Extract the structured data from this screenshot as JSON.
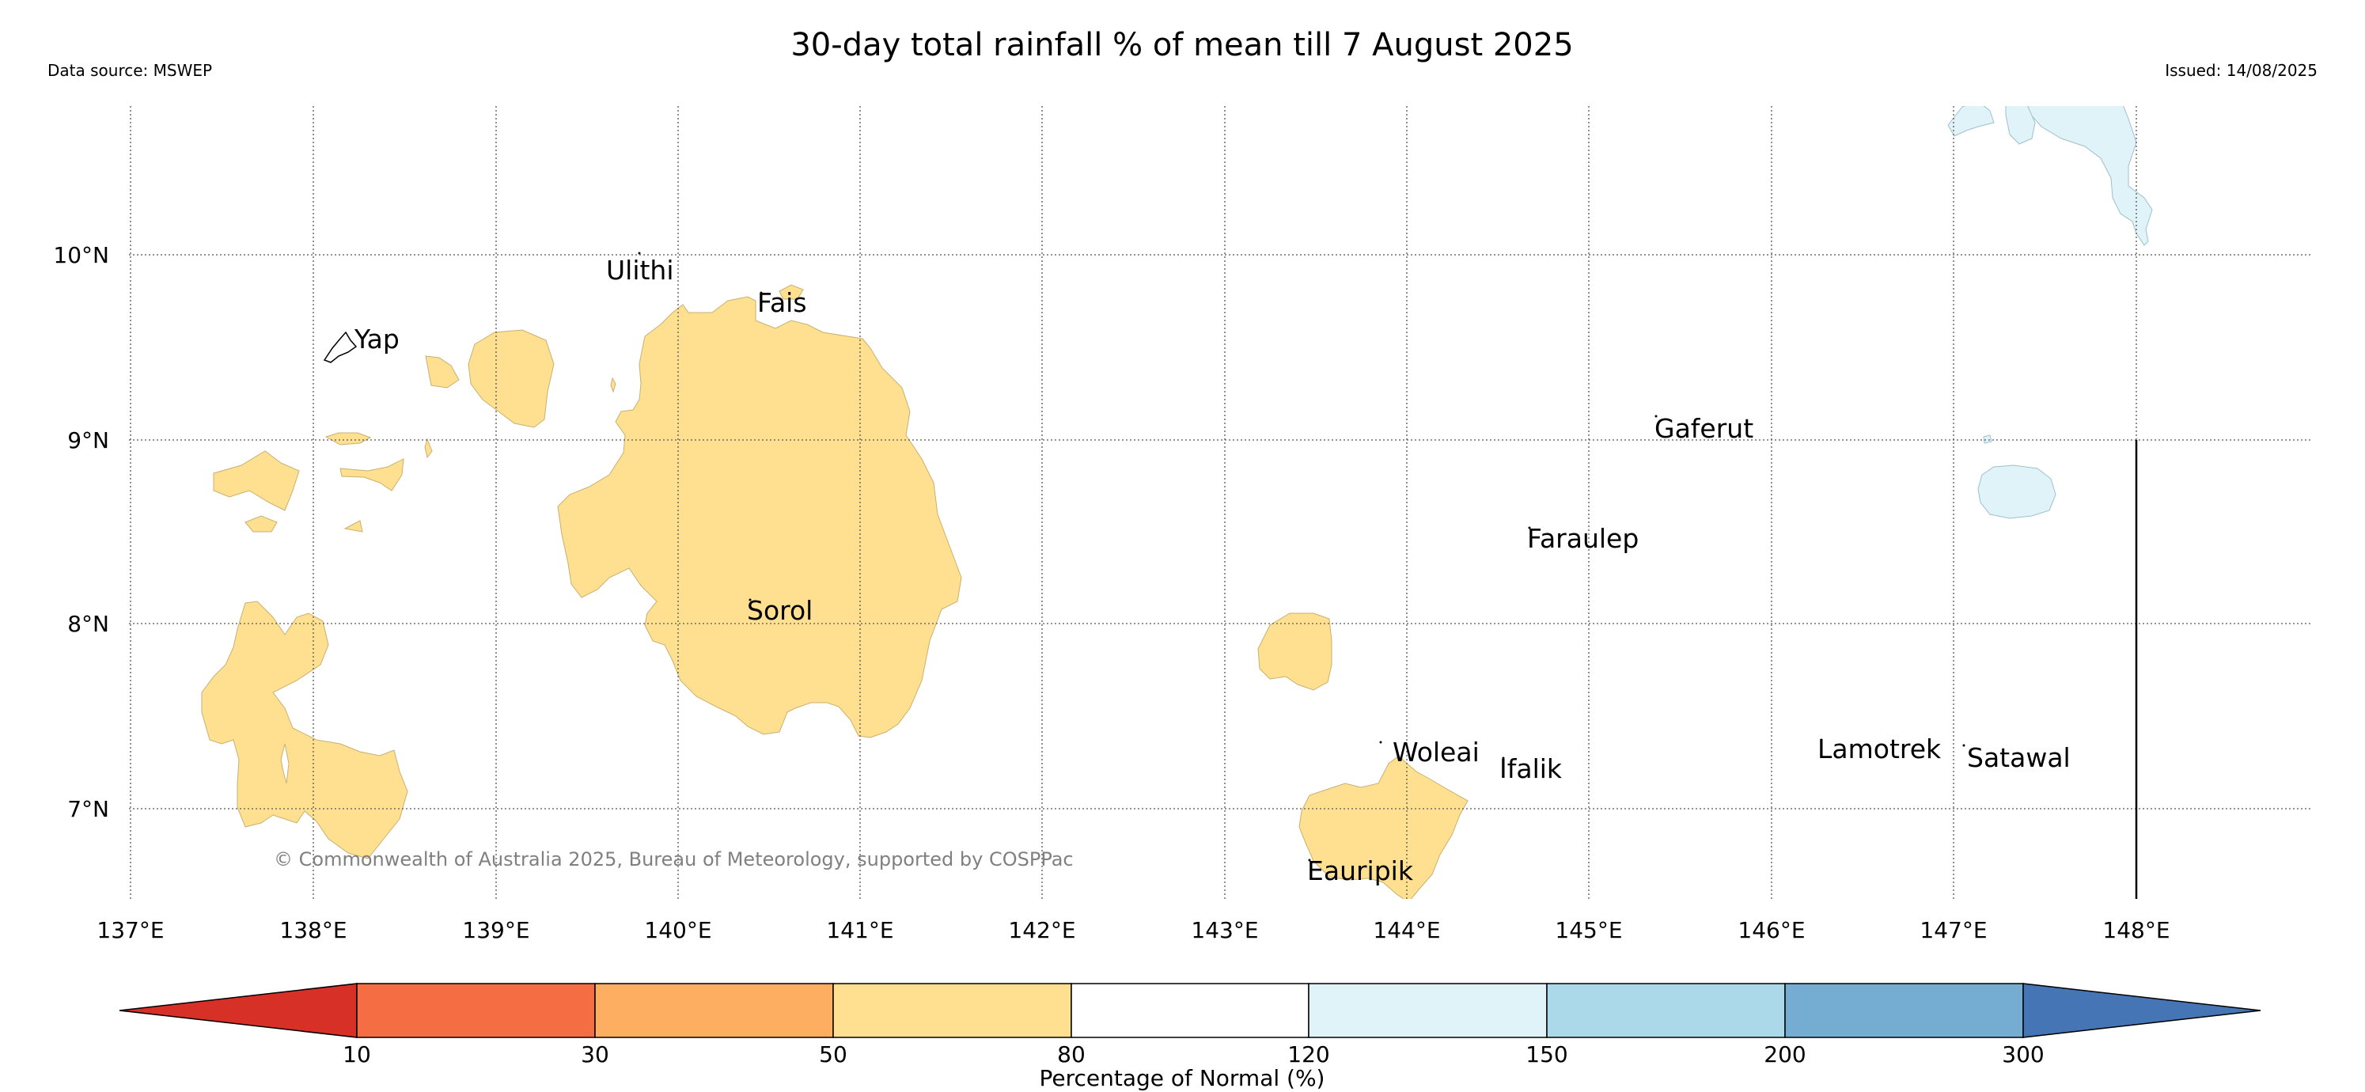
{
  "header": {
    "title": "30-day total rainfall % of mean till 7 August 2025",
    "data_source": "Data source: MSWEP",
    "issued": "Issued: 14/08/2025"
  },
  "map": {
    "copyright": "© Commonwealth of Australia 2025, Bureau of Meteorology, supported by COSPPac",
    "lon_ticks": [
      "137°E",
      "138°E",
      "139°E",
      "140°E",
      "141°E",
      "142°E",
      "143°E",
      "144°E",
      "145°E",
      "146°E",
      "147°E",
      "148°E"
    ],
    "lat_ticks": [
      "10°N",
      "9°N",
      "8°N",
      "7°N"
    ],
    "places": [
      {
        "name": "Ulithi"
      },
      {
        "name": "Fais"
      },
      {
        "name": "Yap"
      },
      {
        "name": "Gaferut"
      },
      {
        "name": "Faraulep"
      },
      {
        "name": "Sorol"
      },
      {
        "name": "Woleai"
      },
      {
        "name": "Ifalik"
      },
      {
        "name": "Lamotrek"
      },
      {
        "name": "Satawal"
      },
      {
        "name": "Eauripik"
      }
    ]
  },
  "colorbar": {
    "label": "Percentage of Normal (%)",
    "ticks": [
      "10",
      "30",
      "50",
      "80",
      "120",
      "150",
      "200",
      "300"
    ],
    "colors": [
      "#d73027",
      "#f46d43",
      "#fdae61",
      "#fee090",
      "#ffffff",
      "#e0f3f8",
      "#abd9e9",
      "#74add1",
      "#4575b4"
    ]
  }
}
